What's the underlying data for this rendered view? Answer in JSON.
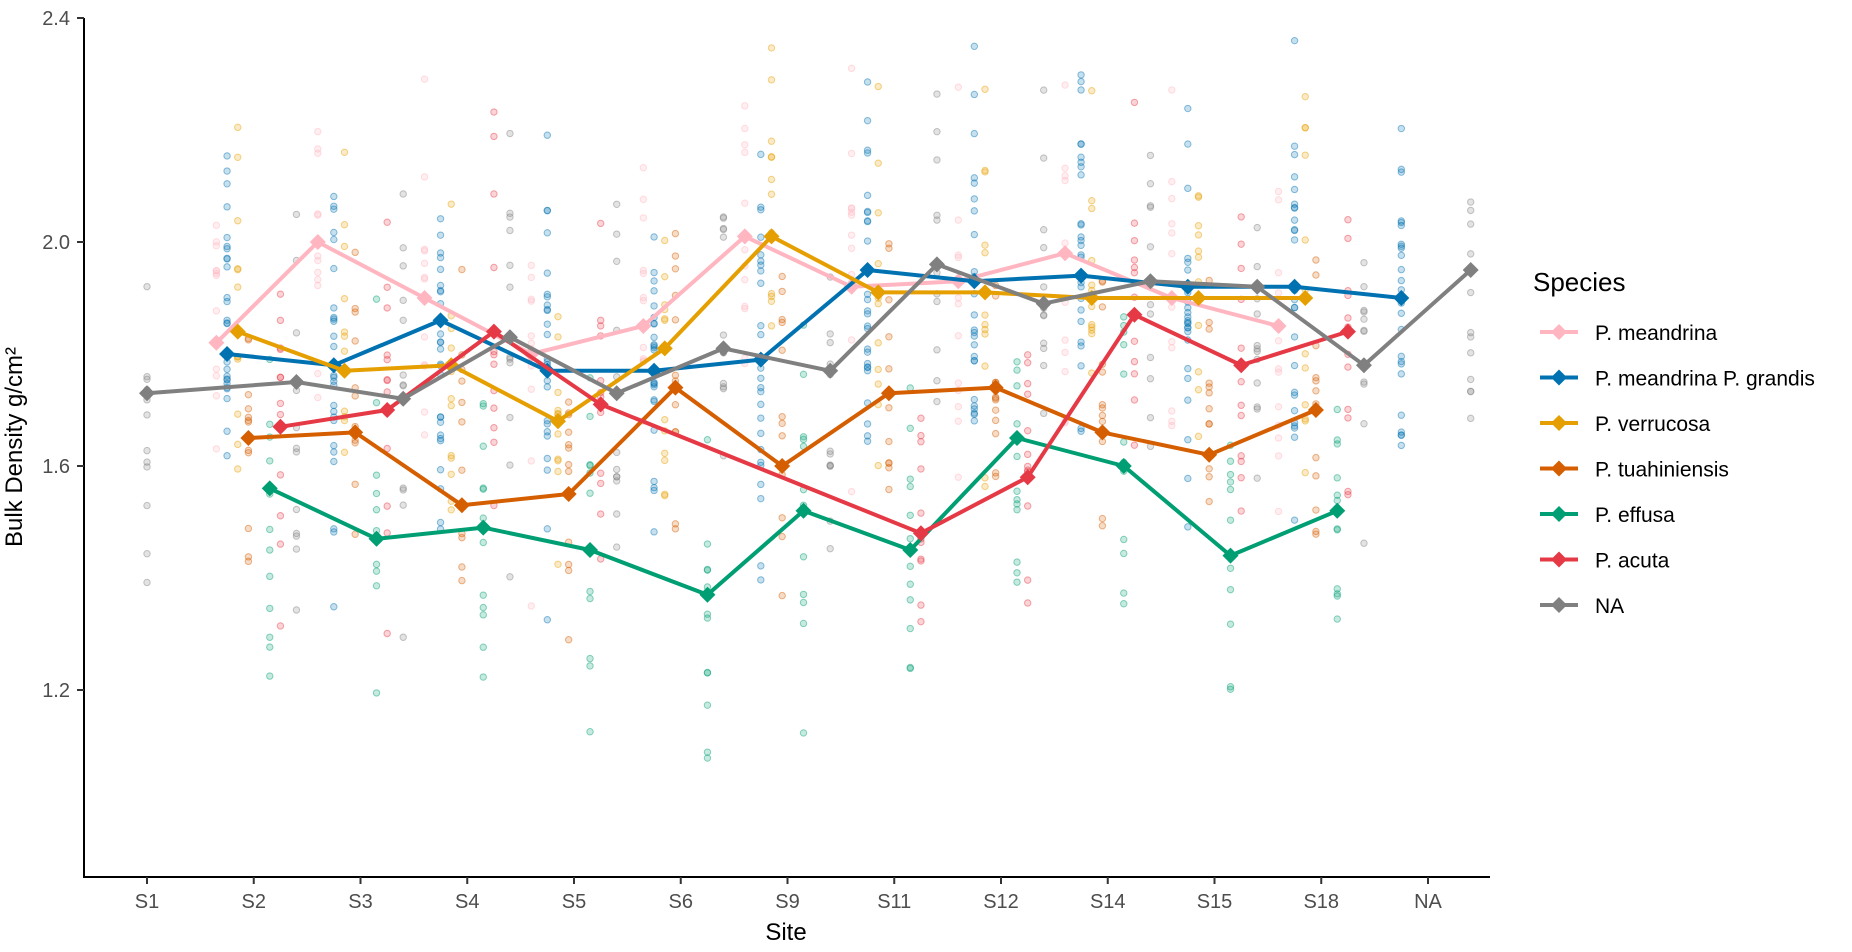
{
  "chart_data": {
    "type": "line",
    "xlabel": "Site",
    "ylabel": "Bulk Density g/cm²",
    "categories": [
      "S1",
      "S2",
      "S3",
      "S4",
      "S5",
      "S6",
      "S9",
      "S11",
      "S12",
      "S14",
      "S15",
      "S18",
      "NA"
    ],
    "yticks": [
      "1.2",
      "1.6",
      "2.0",
      "2.4"
    ],
    "ylim": [
      0.9,
      2.4
    ],
    "legend": {
      "title": "Species",
      "position": "right"
    },
    "grid": false,
    "series": [
      {
        "name": "P. meandrina",
        "color": "#FFB6C1",
        "points": [
          [
            1.65,
            1.82
          ],
          [
            2.6,
            2.0
          ],
          [
            3.6,
            1.9
          ],
          [
            4.6,
            1.8
          ],
          [
            5.65,
            1.85
          ],
          [
            6.6,
            2.01
          ],
          [
            7.6,
            1.92
          ],
          [
            8.6,
            1.93
          ],
          [
            9.6,
            1.98
          ],
          [
            10.6,
            1.9
          ],
          [
            11.6,
            1.85
          ]
        ]
      },
      {
        "name": "P. meandrina P. grandis",
        "color": "#0072B2",
        "points": [
          [
            1.75,
            1.8
          ],
          [
            2.75,
            1.78
          ],
          [
            3.75,
            1.86
          ],
          [
            4.75,
            1.77
          ],
          [
            5.75,
            1.77
          ],
          [
            6.75,
            1.79
          ],
          [
            7.75,
            1.95
          ],
          [
            8.75,
            1.93
          ],
          [
            9.75,
            1.94
          ],
          [
            10.75,
            1.92
          ],
          [
            11.75,
            1.92
          ],
          [
            12.75,
            1.9
          ]
        ]
      },
      {
        "name": "P. verrucosa",
        "color": "#E69F00",
        "points": [
          [
            1.85,
            1.84
          ],
          [
            2.85,
            1.77
          ],
          [
            3.85,
            1.78
          ],
          [
            4.85,
            1.68
          ],
          [
            5.85,
            1.81
          ],
          [
            6.85,
            2.01
          ],
          [
            7.85,
            1.91
          ],
          [
            8.85,
            1.91
          ],
          [
            9.85,
            1.9
          ],
          [
            10.85,
            1.9
          ],
          [
            11.85,
            1.9
          ]
        ]
      },
      {
        "name": "P. tuahiniensis",
        "color": "#D55E00",
        "points": [
          [
            1.95,
            1.65
          ],
          [
            2.95,
            1.66
          ],
          [
            3.95,
            1.53
          ],
          [
            4.95,
            1.55
          ],
          [
            5.95,
            1.74
          ],
          [
            6.95,
            1.6
          ],
          [
            7.95,
            1.73
          ],
          [
            8.95,
            1.74
          ],
          [
            9.95,
            1.66
          ],
          [
            10.95,
            1.62
          ],
          [
            11.95,
            1.7
          ]
        ]
      },
      {
        "name": "P. effusa",
        "color": "#009E73",
        "points": [
          [
            2.15,
            1.56
          ],
          [
            3.15,
            1.47
          ],
          [
            4.15,
            1.49
          ],
          [
            5.15,
            1.45
          ],
          [
            6.25,
            1.37
          ],
          [
            7.15,
            1.52
          ],
          [
            8.15,
            1.45
          ],
          [
            9.15,
            1.65
          ],
          [
            10.15,
            1.6
          ],
          [
            11.15,
            1.44
          ],
          [
            12.15,
            1.52
          ]
        ]
      },
      {
        "name": "P. acuta",
        "color": "#E63946",
        "points": [
          [
            2.25,
            1.67
          ],
          [
            3.25,
            1.7
          ],
          [
            4.25,
            1.84
          ],
          [
            5.25,
            1.71
          ],
          [
            8.25,
            1.48
          ],
          [
            9.25,
            1.58
          ],
          [
            10.25,
            1.87
          ],
          [
            11.25,
            1.78
          ],
          [
            12.25,
            1.84
          ]
        ]
      },
      {
        "name": "NA",
        "color": "#808080",
        "points": [
          [
            1.0,
            1.73
          ],
          [
            2.4,
            1.75
          ],
          [
            3.4,
            1.72
          ],
          [
            4.4,
            1.83
          ],
          [
            5.4,
            1.73
          ],
          [
            6.4,
            1.81
          ],
          [
            7.4,
            1.77
          ],
          [
            8.4,
            1.96
          ],
          [
            9.4,
            1.89
          ],
          [
            10.4,
            1.93
          ],
          [
            11.4,
            1.92
          ],
          [
            12.4,
            1.78
          ],
          [
            13.4,
            1.95
          ]
        ]
      }
    ]
  }
}
